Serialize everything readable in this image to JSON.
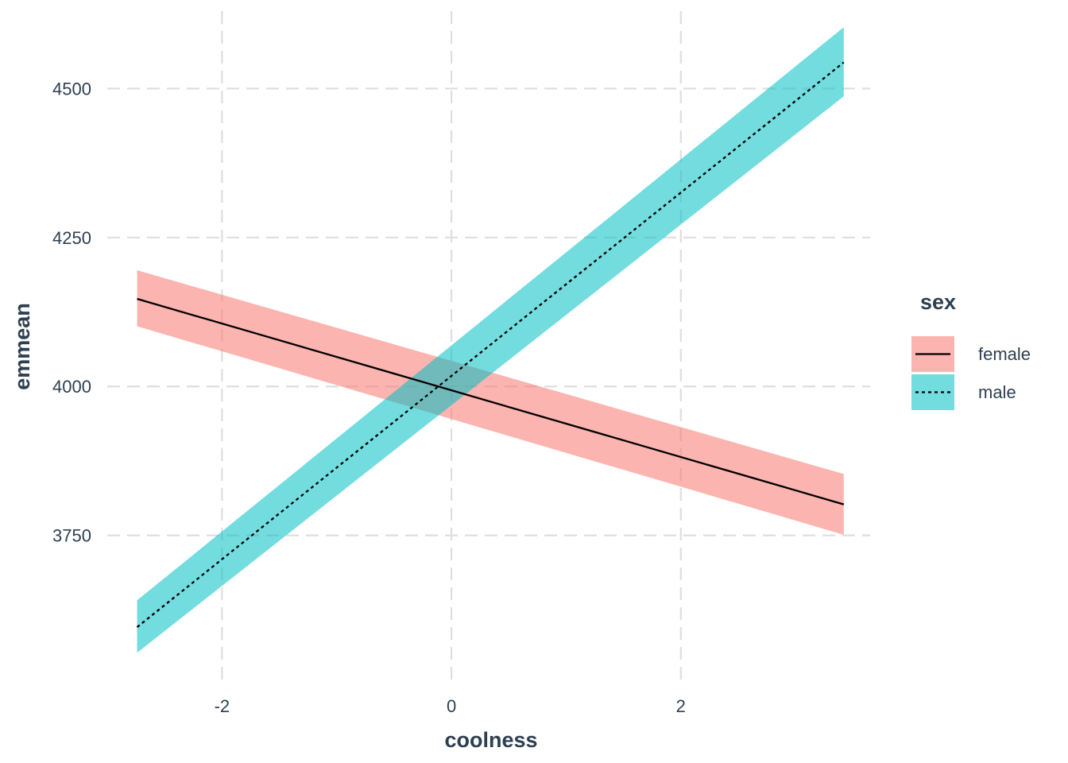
{
  "chart_data": {
    "type": "line",
    "xlabel": "coolness",
    "ylabel": "emmean",
    "xlim": [
      -3.0,
      3.65
    ],
    "ylim": [
      3508,
      4630
    ],
    "x_ticks": [
      -2,
      0,
      2
    ],
    "x_tick_labels": [
      "-2",
      "0",
      "2"
    ],
    "y_ticks": [
      3750,
      4000,
      4250,
      4500
    ],
    "y_tick_labels": [
      "3750",
      "4000",
      "4250",
      "4500"
    ],
    "grid": true,
    "grid_style": "dashed",
    "legend_title": "sex",
    "legend_position": "right",
    "series": [
      {
        "name": "female",
        "color": "#F8766D",
        "line_style": "solid",
        "x": [
          -2.74,
          3.42
        ],
        "y": [
          4147,
          3802
        ],
        "lower": [
          4101,
          3751
        ],
        "upper": [
          4195,
          3853
        ]
      },
      {
        "name": "male",
        "color": "#00BFC4",
        "line_style": "dotted",
        "x": [
          -2.74,
          3.42
        ],
        "y": [
          3596,
          4544
        ],
        "lower": [
          3553,
          4487
        ],
        "upper": [
          3641,
          4603
        ]
      }
    ]
  }
}
